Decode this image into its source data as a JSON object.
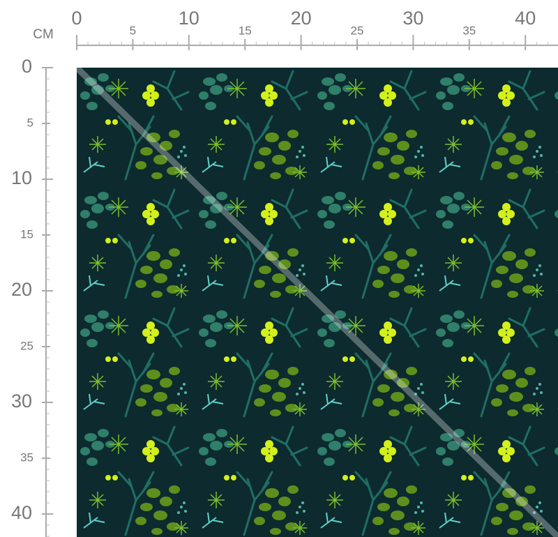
{
  "ruler": {
    "unit": "CM",
    "top": [
      0,
      5,
      10,
      15,
      20,
      25,
      30,
      35,
      40
    ],
    "left": [
      0,
      5,
      10,
      15,
      20,
      25,
      30,
      35,
      40
    ]
  }
}
